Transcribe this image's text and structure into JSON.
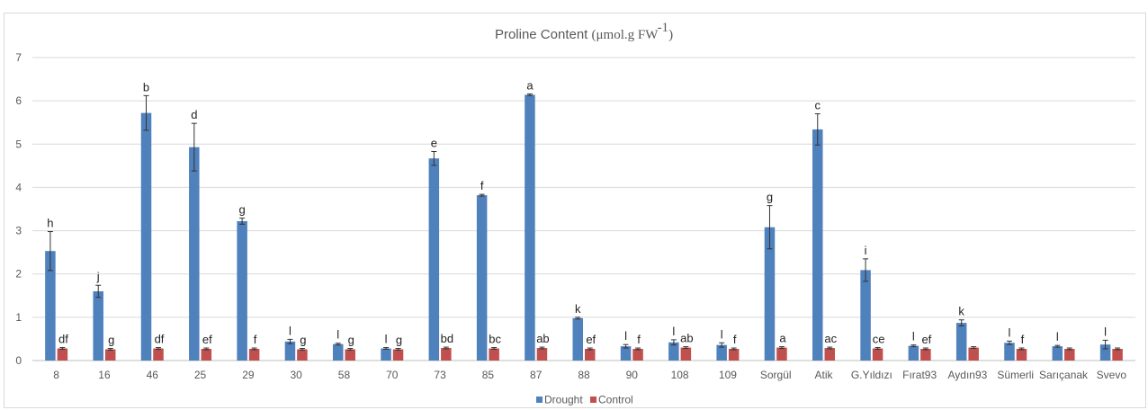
{
  "chart_data": {
    "type": "bar",
    "title": "Proline Content",
    "title_unit": "(μmol.g FW",
    "title_unit_sup": "-1",
    "title_unit_close": ")",
    "xlabel": "",
    "ylabel": "",
    "ylim": [
      0,
      7
    ],
    "yticks": [
      0,
      1,
      2,
      3,
      4,
      5,
      6,
      7
    ],
    "grid": true,
    "legend_position": "bottom",
    "categories": [
      "8",
      "16",
      "46",
      "25",
      "29",
      "30",
      "58",
      "70",
      "73",
      "85",
      "87",
      "88",
      "90",
      "108",
      "109",
      "Sorgül",
      "Atik",
      "G.Yıldızı",
      "Fırat93",
      "Aydın93",
      "Sümerli",
      "Sarıçanak",
      "Svevo"
    ],
    "series": [
      {
        "name": "Drought",
        "color": "#4f81bd",
        "values": [
          2.53,
          1.6,
          5.72,
          4.93,
          3.22,
          0.44,
          0.38,
          0.28,
          4.67,
          3.82,
          6.14,
          0.98,
          0.33,
          0.42,
          0.36,
          3.08,
          5.34,
          2.09,
          0.34,
          0.87,
          0.41,
          0.33,
          0.37
        ],
        "errors": [
          0.45,
          0.14,
          0.4,
          0.55,
          0.07,
          0.05,
          0.02,
          0.02,
          0.16,
          0.02,
          0.02,
          0.02,
          0.04,
          0.06,
          0.05,
          0.5,
          0.36,
          0.26,
          0.02,
          0.07,
          0.04,
          0.02,
          0.1
        ],
        "labels": [
          "h",
          "j",
          "b",
          "d",
          "g",
          "l",
          "l",
          "l",
          "e",
          "f",
          "a",
          "k",
          "l",
          "l",
          "l",
          "g",
          "c",
          "i",
          "l",
          "k",
          "l",
          "l",
          "l"
        ]
      },
      {
        "name": "Control",
        "color": "#c0504d",
        "values": [
          0.28,
          0.26,
          0.28,
          0.27,
          0.27,
          0.26,
          0.26,
          0.26,
          0.29,
          0.28,
          0.29,
          0.27,
          0.27,
          0.3,
          0.27,
          0.3,
          0.29,
          0.28,
          0.27,
          0.3,
          0.27,
          0.27,
          0.27
        ],
        "errors": [
          0.02,
          0.02,
          0.02,
          0.02,
          0.02,
          0.02,
          0.02,
          0.02,
          0.02,
          0.02,
          0.02,
          0.02,
          0.02,
          0.02,
          0.02,
          0.02,
          0.02,
          0.02,
          0.02,
          0.02,
          0.02,
          0.02,
          0.02
        ],
        "labels": [
          "df",
          "g",
          "df",
          "ef",
          "f",
          "g",
          "g",
          "g",
          "bd",
          "bc",
          "ab",
          "ef",
          "f",
          "ab",
          "f",
          "a",
          "ac",
          "ce",
          "ef",
          "",
          "f",
          "",
          ""
        ]
      }
    ]
  }
}
